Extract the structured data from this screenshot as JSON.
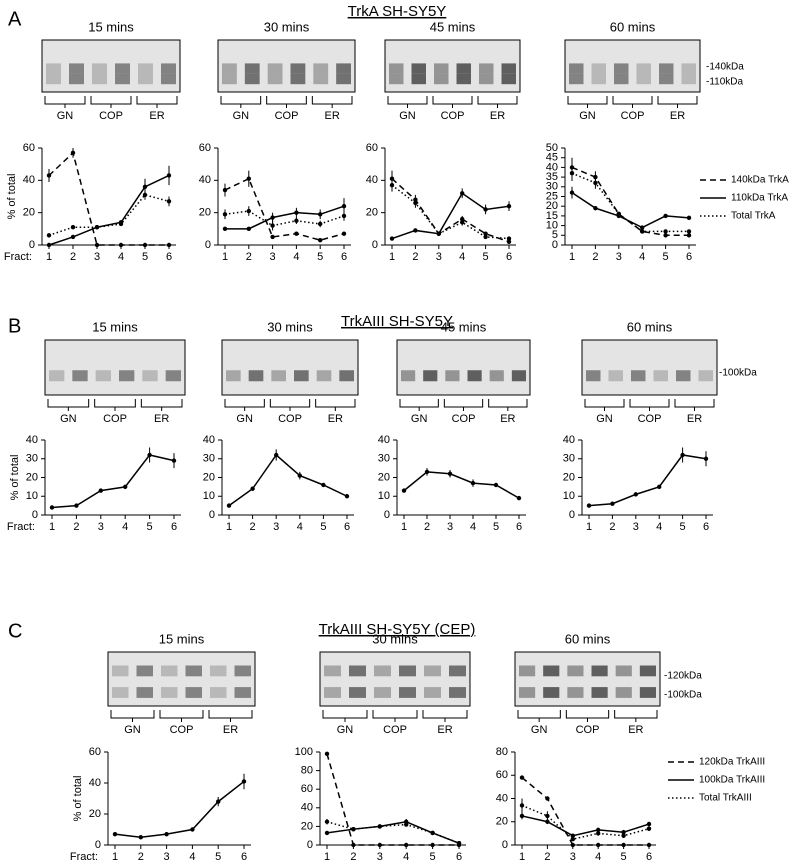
{
  "panels": [
    {
      "label": "A",
      "title": "TrkA SH-SY5Y",
      "markers": [
        "-140kDa",
        "-110kDa"
      ],
      "lanes": [
        "GN",
        "COP",
        "ER"
      ],
      "chart_data": [
        {
          "type": "line",
          "title": "15 mins",
          "ylabel": "% of total",
          "xlabel": "Fract:",
          "categories": [
            1,
            2,
            3,
            4,
            5,
            6
          ],
          "ylim": [
            0,
            60
          ],
          "yticks": [
            0,
            20,
            40,
            60
          ],
          "series": [
            {
              "style": "dashed",
              "values": [
                43,
                57,
                0,
                0,
                0,
                0
              ],
              "errors": [
                4,
                3,
                0,
                0,
                0,
                0
              ]
            },
            {
              "style": "solid",
              "values": [
                0,
                5,
                11,
                14,
                36,
                43
              ],
              "errors": [
                0,
                0,
                1,
                1,
                5,
                6
              ]
            },
            {
              "style": "dotted",
              "values": [
                6,
                11,
                11,
                13,
                31,
                27
              ],
              "errors": [
                1,
                1,
                1,
                1,
                3,
                3
              ]
            }
          ]
        },
        {
          "type": "line",
          "title": "30 mins",
          "categories": [
            1,
            2,
            3,
            4,
            5,
            6
          ],
          "ylim": [
            0,
            60
          ],
          "yticks": [
            0,
            20,
            40,
            60
          ],
          "series": [
            {
              "style": "dashed",
              "values": [
                34,
                41,
                5,
                7,
                3,
                7
              ],
              "errors": [
                4,
                5,
                1,
                1,
                1,
                1
              ]
            },
            {
              "style": "solid",
              "values": [
                10,
                10,
                17,
                20,
                19,
                24
              ],
              "errors": [
                0,
                0,
                3,
                3,
                3,
                5
              ]
            },
            {
              "style": "dotted",
              "values": [
                19,
                21,
                12,
                15,
                13,
                18
              ],
              "errors": [
                3,
                3,
                3,
                2,
                2,
                3
              ]
            }
          ]
        },
        {
          "type": "line",
          "title": "45 mins",
          "categories": [
            1,
            2,
            3,
            4,
            5,
            6
          ],
          "ylim": [
            0,
            60
          ],
          "yticks": [
            0,
            20,
            40,
            60
          ],
          "series": [
            {
              "style": "dashed",
              "values": [
                41,
                28,
                7,
                16,
                7,
                2
              ],
              "errors": [
                5,
                3,
                1,
                2,
                1,
                1
              ]
            },
            {
              "style": "solid",
              "values": [
                4,
                9,
                7,
                32,
                22,
                24
              ],
              "errors": [
                0,
                0,
                1,
                3,
                3,
                3
              ]
            },
            {
              "style": "dotted",
              "values": [
                37,
                26,
                7,
                14,
                5,
                4
              ],
              "errors": [
                4,
                3,
                1,
                2,
                1,
                1
              ]
            }
          ]
        },
        {
          "type": "line",
          "title": "60 mins",
          "categories": [
            1,
            2,
            3,
            4,
            5,
            6
          ],
          "ylim": [
            0,
            50
          ],
          "yticks": [
            0,
            5,
            10,
            15,
            20,
            25,
            30,
            35,
            40,
            45,
            50
          ],
          "legend": "right",
          "series": [
            {
              "name": "140kDa TrkA",
              "style": "dashed",
              "values": [
                40,
                35,
                16,
                7,
                5,
                5
              ],
              "errors": [
                5,
                3,
                1,
                1,
                1,
                1
              ]
            },
            {
              "name": "110kDa TrkA",
              "style": "solid",
              "values": [
                27,
                19,
                15,
                9,
                15,
                14
              ],
              "errors": [
                3,
                1,
                1,
                1,
                1,
                1
              ]
            },
            {
              "name": "Total TrkA",
              "style": "dotted",
              "values": [
                37,
                32,
                16,
                7,
                7,
                7
              ],
              "errors": [
                4,
                3,
                1,
                1,
                1,
                1
              ]
            }
          ]
        }
      ]
    },
    {
      "label": "B",
      "title": "TrkAIII SH-SY5Y",
      "markers": [
        "-100kDa"
      ],
      "lanes": [
        "GN",
        "COP",
        "ER"
      ],
      "chart_data": [
        {
          "type": "line",
          "title": "15 mins",
          "ylabel": "% of total",
          "xlabel": "Fract:",
          "categories": [
            1,
            2,
            3,
            4,
            5,
            6
          ],
          "ylim": [
            0,
            40
          ],
          "yticks": [
            0,
            10,
            20,
            30,
            40
          ],
          "series": [
            {
              "style": "solid",
              "values": [
                4,
                5,
                13,
                15,
                32,
                29
              ],
              "errors": [
                0,
                0,
                1,
                1,
                4,
                4
              ]
            }
          ]
        },
        {
          "type": "line",
          "title": "30 mins",
          "categories": [
            1,
            2,
            3,
            4,
            5,
            6
          ],
          "ylim": [
            0,
            40
          ],
          "yticks": [
            0,
            10,
            20,
            30,
            40
          ],
          "series": [
            {
              "style": "solid",
              "values": [
                5,
                14,
                32,
                21,
                16,
                10
              ],
              "errors": [
                0,
                1,
                3,
                2,
                1,
                1
              ]
            }
          ]
        },
        {
          "type": "line",
          "title": "45 mins",
          "categories": [
            1,
            2,
            3,
            4,
            5,
            6
          ],
          "ylim": [
            0,
            40
          ],
          "yticks": [
            0,
            10,
            20,
            30,
            40
          ],
          "series": [
            {
              "style": "solid",
              "values": [
                13,
                23,
                22,
                17,
                16,
                9
              ],
              "errors": [
                1,
                2,
                2,
                2,
                1,
                1
              ]
            }
          ]
        },
        {
          "type": "line",
          "title": "60 mins",
          "categories": [
            1,
            2,
            3,
            4,
            5,
            6
          ],
          "ylim": [
            0,
            40
          ],
          "yticks": [
            0,
            10,
            20,
            30,
            40
          ],
          "series": [
            {
              "style": "solid",
              "values": [
                5,
                6,
                11,
                15,
                32,
                30
              ],
              "errors": [
                0,
                0,
                1,
                1,
                4,
                4
              ]
            }
          ]
        }
      ]
    },
    {
      "label": "C",
      "title": "TrkAIII SH-SY5Y (CEP)",
      "markers": [
        "-120kDa",
        "-100kDa"
      ],
      "lanes": [
        "GN",
        "COP",
        "ER"
      ],
      "chart_data": [
        {
          "type": "line",
          "title": "15 mins",
          "ylabel": "% of total",
          "xlabel": "Fract:",
          "categories": [
            1,
            2,
            3,
            4,
            5,
            6
          ],
          "ylim": [
            0,
            60
          ],
          "yticks": [
            0,
            20,
            40,
            60
          ],
          "series": [
            {
              "style": "solid",
              "values": [
                7,
                5,
                7,
                10,
                28,
                41
              ],
              "errors": [
                0,
                0,
                0,
                0,
                3,
                5
              ]
            }
          ]
        },
        {
          "type": "line",
          "title": "30 mins",
          "categories": [
            1,
            2,
            3,
            4,
            5,
            6
          ],
          "ylim": [
            0,
            100
          ],
          "yticks": [
            0,
            20,
            40,
            60,
            80,
            100
          ],
          "series": [
            {
              "style": "dashed",
              "values": [
                98,
                0,
                0,
                0,
                0,
                0
              ],
              "errors": [
                0,
                0,
                0,
                0,
                0,
                0
              ]
            },
            {
              "style": "solid",
              "values": [
                13,
                17,
                20,
                25,
                13,
                2
              ],
              "errors": [
                1,
                2,
                2,
                3,
                2,
                1
              ]
            },
            {
              "style": "dotted",
              "values": [
                25,
                17,
                20,
                22,
                13,
                2
              ],
              "errors": [
                3,
                2,
                2,
                2,
                2,
                1
              ]
            }
          ]
        },
        {
          "type": "line",
          "title": "60 mins",
          "categories": [
            1,
            2,
            3,
            4,
            5,
            6
          ],
          "ylim": [
            0,
            80
          ],
          "yticks": [
            0,
            20,
            40,
            60,
            80
          ],
          "legend": "right",
          "series": [
            {
              "name": "120kDa TrkAIII",
              "style": "dashed",
              "values": [
                58,
                40,
                0,
                0,
                0,
                0
              ],
              "errors": [
                0,
                0,
                0,
                0,
                0,
                0
              ]
            },
            {
              "name": "100kDa TrkAIII",
              "style": "solid",
              "values": [
                25,
                20,
                8,
                13,
                11,
                18
              ],
              "errors": [
                3,
                2,
                1,
                2,
                2,
                2
              ]
            },
            {
              "name": "Total TrkAIII",
              "style": "dotted",
              "values": [
                34,
                25,
                5,
                10,
                8,
                14
              ],
              "errors": [
                6,
                4,
                1,
                2,
                2,
                2
              ]
            }
          ]
        }
      ]
    }
  ]
}
